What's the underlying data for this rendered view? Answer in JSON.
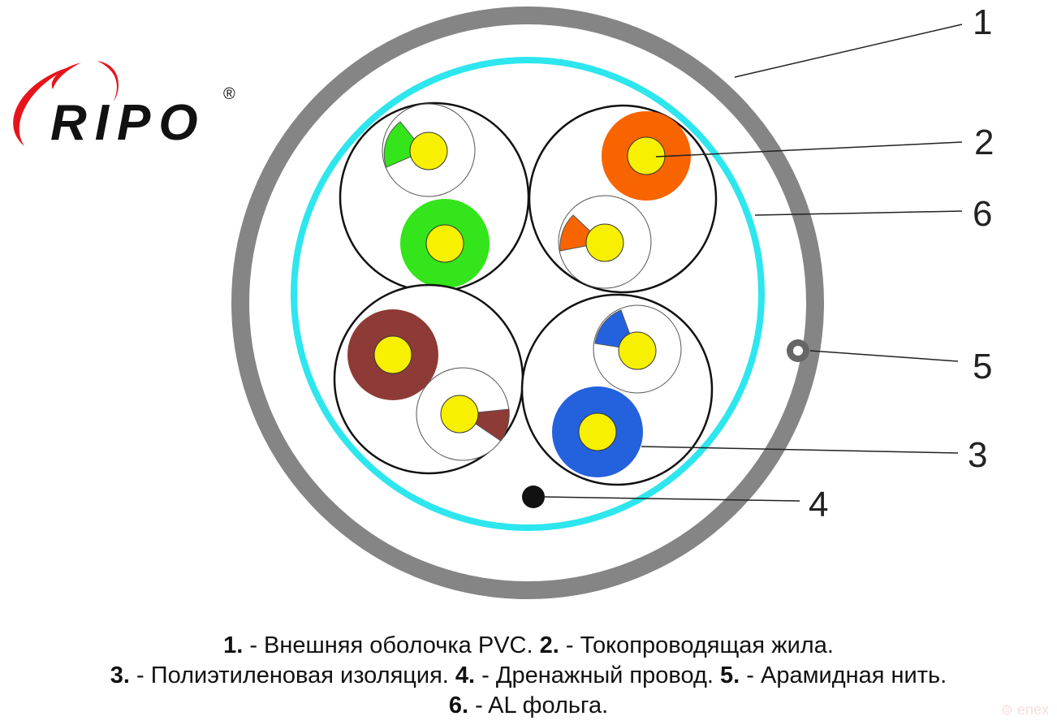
{
  "logo": {
    "text": "RIPO",
    "registered": "®"
  },
  "callouts": [
    "1",
    "2",
    "3",
    "4",
    "5",
    "6"
  ],
  "caption": [
    [
      {
        "n": "1.",
        "t": " - Внешняя оболочка PVC. "
      },
      {
        "n": "2.",
        "t": " - Токопроводящая жила."
      }
    ],
    [
      {
        "n": "3.",
        "t": " - Полиэтиленовая изоляция. "
      },
      {
        "n": "4.",
        "t": " - Дренажный провод. "
      },
      {
        "n": "5.",
        "t": " - Арамидная нить."
      }
    ],
    [
      {
        "n": "6.",
        "t": " - AL фольга."
      }
    ]
  ],
  "watermark": "enex",
  "colors": {
    "jacket": "#858585",
    "foil": "#2de6ee",
    "conductor": "#f7f000",
    "green": "#33e51a",
    "orange": "#f86400",
    "brown": "#8e3a36",
    "blue": "#2461dd"
  }
}
